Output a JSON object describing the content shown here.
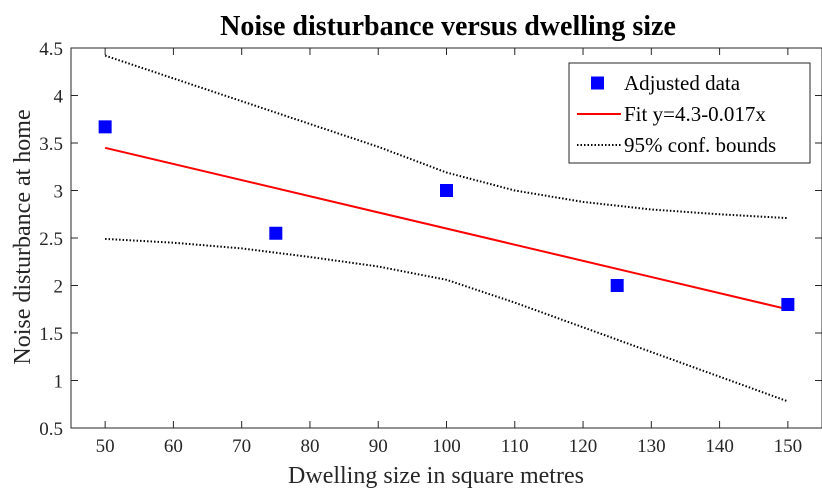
{
  "chart_data": {
    "type": "scatter",
    "title": "Noise disturbance versus dwelling size",
    "xlabel": "Dwelling size in square metres",
    "ylabel": "Noise disturbance at home",
    "xlim": [
      45,
      155
    ],
    "ylim": [
      0.5,
      4.5
    ],
    "xticks": [
      50,
      60,
      70,
      80,
      90,
      100,
      110,
      120,
      130,
      140,
      150
    ],
    "yticks": [
      0.5,
      1,
      1.5,
      2,
      2.5,
      3,
      3.5,
      4,
      4.5
    ],
    "grid": false,
    "legend_position": "top-right",
    "series": [
      {
        "name": "Adjusted data",
        "kind": "markers",
        "color": "#0000ff",
        "points": [
          [
            50,
            3.67
          ],
          [
            75,
            2.55
          ],
          [
            100,
            3.0
          ],
          [
            125,
            2.0
          ],
          [
            150,
            1.8
          ]
        ]
      },
      {
        "name": "Fit y=4.3-0.017x",
        "kind": "line",
        "color": "#ff0000",
        "points": [
          [
            50,
            3.45
          ],
          [
            150,
            1.75
          ]
        ]
      },
      {
        "name": "95% conf. bounds",
        "kind": "dotted-line",
        "color": "#000000",
        "upper": [
          [
            50,
            4.42
          ],
          [
            60,
            4.18
          ],
          [
            70,
            3.94
          ],
          [
            80,
            3.7
          ],
          [
            90,
            3.46
          ],
          [
            100,
            3.19
          ],
          [
            110,
            3.0
          ],
          [
            120,
            2.88
          ],
          [
            130,
            2.8
          ],
          [
            140,
            2.75
          ],
          [
            150,
            2.71
          ]
        ],
        "lower": [
          [
            50,
            2.49
          ],
          [
            60,
            2.45
          ],
          [
            70,
            2.39
          ],
          [
            80,
            2.3
          ],
          [
            90,
            2.2
          ],
          [
            100,
            2.06
          ],
          [
            110,
            1.82
          ],
          [
            120,
            1.56
          ],
          [
            130,
            1.3
          ],
          [
            140,
            1.04
          ],
          [
            150,
            0.78
          ]
        ]
      }
    ]
  }
}
